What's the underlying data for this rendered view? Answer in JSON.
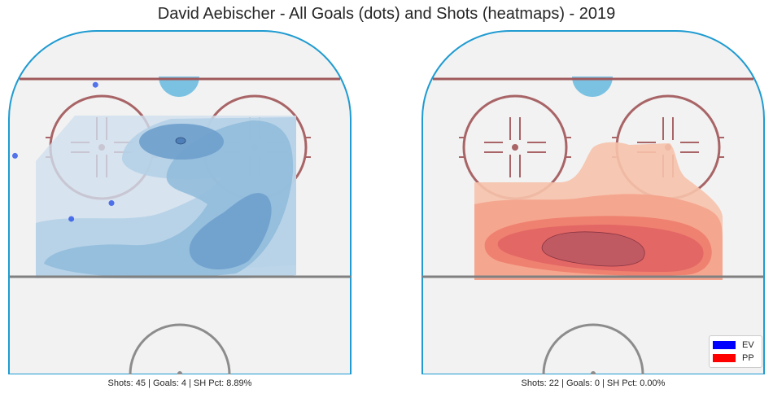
{
  "title": "David Aebischer - All Goals (dots) and Shots (heatmaps) - 2019",
  "panels": [
    {
      "caption": "Shots: 45 | Goals: 4 | SH Pct: 8.89%"
    },
    {
      "caption": "Shots: 22 | Goals: 0 | SH Pct: 0.00%"
    }
  ],
  "legend": {
    "items": [
      {
        "label": "EV",
        "color": "#0000ff"
      },
      {
        "label": "PP",
        "color": "#ff0000"
      }
    ]
  },
  "colors": {
    "rink_fill": "#f2f2f2",
    "boards": "#1f9bd1",
    "goal_line": "#a0595c",
    "blue_line": "#808080",
    "crease": "#7bc2e2",
    "faceoff": "#a86466",
    "ev_heat": [
      "#d5e3ef",
      "#b5d2e6",
      "#8fbcdb",
      "#6ea2cf",
      "#4f87bf"
    ],
    "pp_heat": [
      "#f6c3ad",
      "#f6a08a",
      "#f07e6d",
      "#e0595a",
      "#b94458"
    ],
    "ev_goal": "#2a52e8"
  },
  "chart_data": [
    {
      "type": "heatmap",
      "panel": "left",
      "series": [
        {
          "name": "EV"
        }
      ],
      "shots": 45,
      "goals": 4,
      "sh_pct": 8.89,
      "goal_points": [
        [
          -21,
          73
        ],
        [
          -41,
          46
        ],
        [
          -17,
          28
        ],
        [
          -27,
          22
        ]
      ],
      "grid": false
    },
    {
      "type": "heatmap",
      "panel": "right",
      "series": [
        {
          "name": "PP"
        }
      ],
      "shots": 22,
      "goals": 0,
      "sh_pct": 0.0,
      "goal_points": [],
      "grid": false
    }
  ]
}
